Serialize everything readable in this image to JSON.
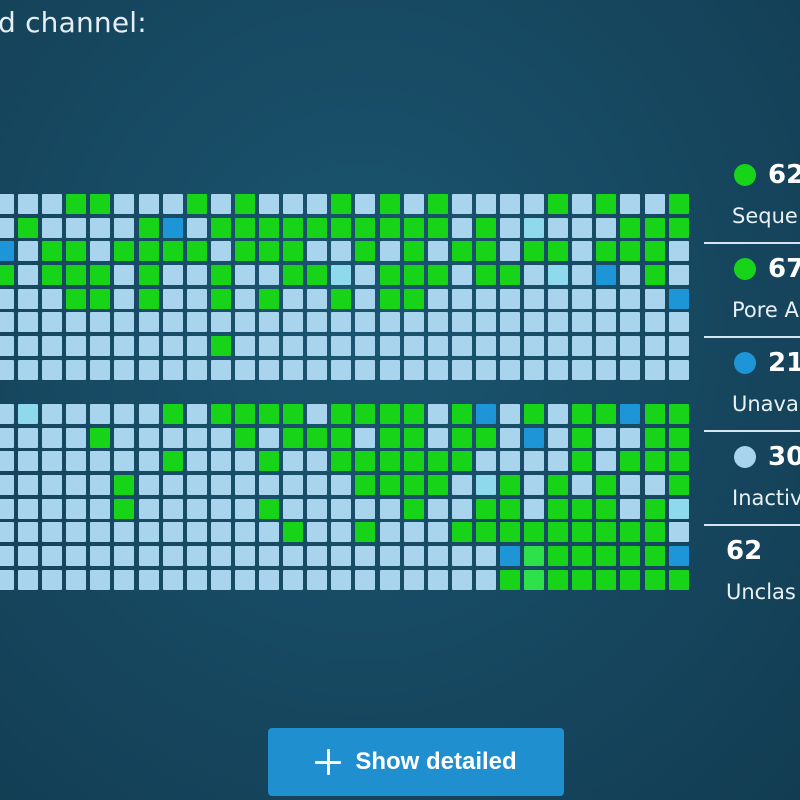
{
  "heading": "d channel:",
  "grid": {
    "palette": {
      "0": "#a9d4ee",
      "1": "#18d418",
      "2": "#1e95d6",
      "3": "#8ed9ec",
      "4": "#2ee04a"
    },
    "top_block": [
      "00011000101000101010000101001",
      "01000012011111111110103000111",
      "20110111101110010101101101110",
      "10111010010011301110110302010",
      "00011010010100101100000000002",
      "00000000000000000000000000000",
      "00000000010000000000000000000",
      "00000000000000000000000000000"
    ],
    "bottom_block": [
      "03000001011110111101201011211",
      "00001000001011101101102010011",
      "00000001000100111111000010111",
      "00000100000000011110310101001",
      "00000100000100000100110111013",
      "00000000000010010001111111110",
      "00000000000000000000024111112",
      "00000000000000000000014111111"
    ]
  },
  "legend": [
    {
      "value": "62",
      "label": "Seque",
      "color": "#18d418",
      "dot": true
    },
    {
      "value": "67",
      "label": "Pore A",
      "color": "#18d418",
      "dot": true
    },
    {
      "value": "21",
      "label": "Unava",
      "color": "#1e95d6",
      "dot": true
    },
    {
      "value": "30",
      "label": "Inactiv",
      "color": "#a9d4ee",
      "dot": true
    },
    {
      "value": "62",
      "label": "Unclas",
      "color": null,
      "dot": false
    }
  ],
  "button": {
    "label": "Show detailed",
    "icon": "plus-icon"
  }
}
